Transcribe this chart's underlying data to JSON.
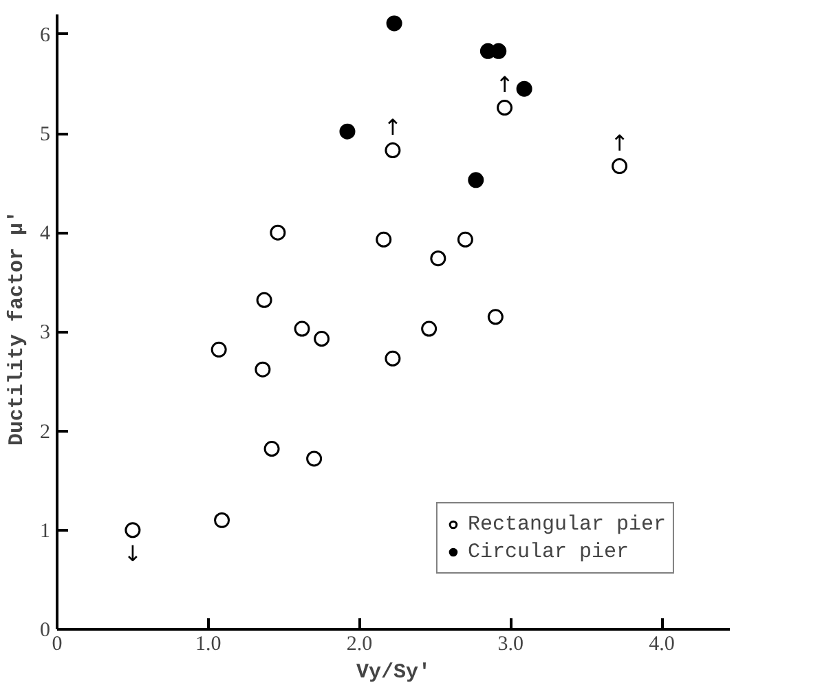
{
  "chart_data": {
    "type": "scatter",
    "xlabel": "Vy/Sy'",
    "ylabel": "Ductility factor  μ'",
    "xlim": [
      0,
      4.45
    ],
    "ylim": [
      0,
      6.2
    ],
    "xticks": [
      0,
      {
        "value": 1,
        "label": "1.0"
      },
      {
        "value": 2,
        "label": "2.0"
      },
      {
        "value": 3,
        "label": "3.0"
      },
      {
        "value": 4,
        "label": "4.0"
      }
    ],
    "yticks": [
      0,
      1,
      2,
      3,
      4,
      5,
      6
    ],
    "grid": false,
    "legend": "bottom right",
    "series": [
      {
        "name": "Rectangular pier",
        "color": "#000000",
        "marker": "circle",
        "x": [
          0.5,
          1.09,
          1.07,
          1.36,
          1.37,
          1.46,
          1.42,
          1.62,
          1.75,
          1.7,
          2.16,
          2.22,
          2.22,
          2.46,
          2.52,
          2.7,
          2.9,
          2.96,
          3.72
        ],
        "values": [
          1.0,
          1.1,
          2.82,
          2.62,
          3.32,
          4.0,
          1.82,
          3.03,
          2.93,
          1.72,
          3.93,
          4.83,
          2.73,
          3.03,
          3.74,
          3.93,
          3.15,
          5.26,
          4.67
        ]
      },
      {
        "name": "Circular pier",
        "color": "#000000",
        "marker": "circle",
        "x": [
          1.92,
          2.23,
          2.85,
          2.92,
          3.09,
          2.77
        ],
        "values": [
          5.02,
          6.11,
          5.83,
          5.83,
          5.45,
          4.53
        ]
      }
    ],
    "annotations": [
      {
        "text": "↓",
        "x": 0.5,
        "y": 1.0
      },
      {
        "text": "↑",
        "x": 2.22,
        "y": 4.83
      },
      {
        "text": "↑",
        "x": 2.96,
        "y": 5.26
      },
      {
        "text": "↑",
        "x": 3.72,
        "y": 4.67
      }
    ]
  }
}
